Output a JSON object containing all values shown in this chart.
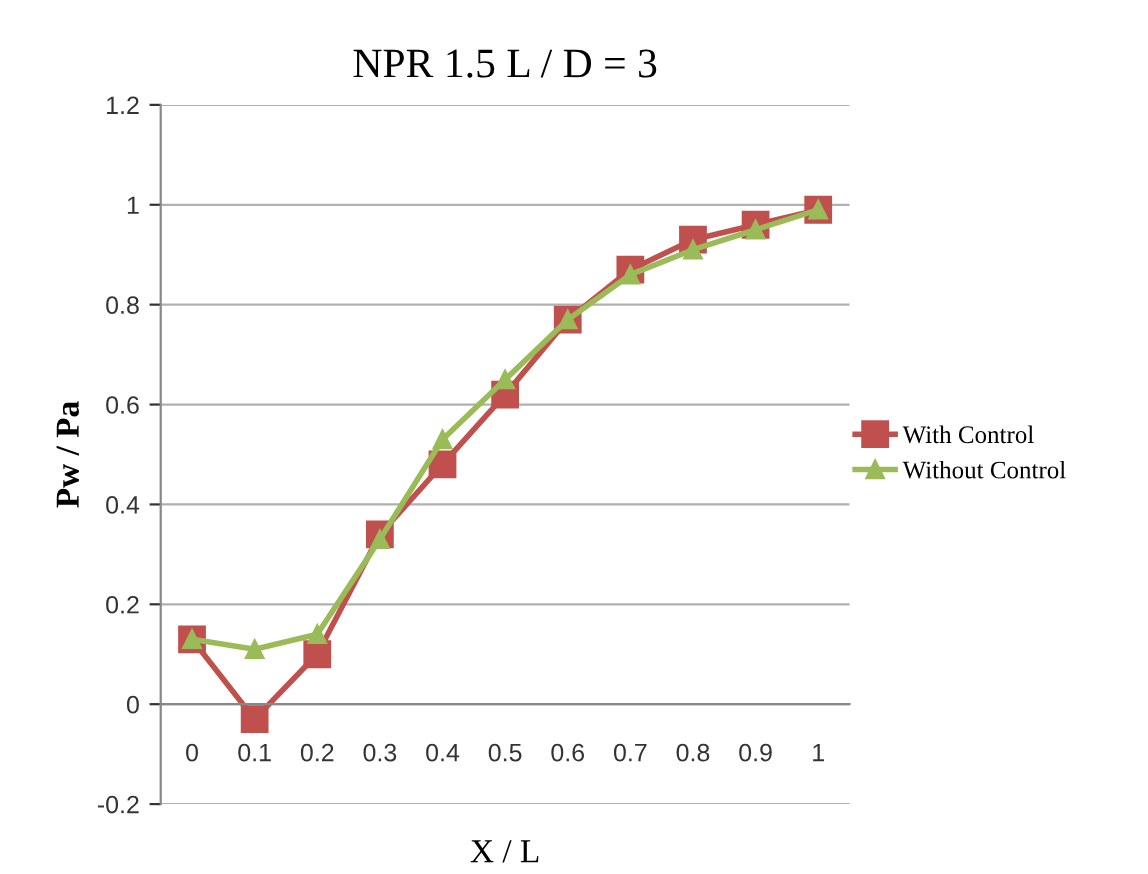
{
  "chart_data": {
    "type": "line",
    "title": "NPR 1.5 L / D = 3",
    "xlabel": "X / L",
    "ylabel": "Pw / Pa",
    "categories": [
      "0",
      "0.1",
      "0.2",
      "0.3",
      "0.4",
      "0.5",
      "0.6",
      "0.7",
      "0.8",
      "0.9",
      "1"
    ],
    "series": [
      {
        "name": "With Control",
        "color": "#c0504d",
        "marker": "square",
        "values": [
          0.13,
          -0.03,
          0.1,
          0.34,
          0.48,
          0.62,
          0.77,
          0.87,
          0.93,
          0.96,
          0.99
        ]
      },
      {
        "name": "Without Control",
        "color": "#9bbb59",
        "marker": "triangle",
        "values": [
          0.13,
          0.11,
          0.14,
          0.33,
          0.53,
          0.65,
          0.77,
          0.86,
          0.91,
          0.95,
          0.99
        ]
      }
    ],
    "ylim": [
      -0.2,
      1.2
    ],
    "yticks": [
      -0.2,
      0,
      0.2,
      0.4,
      0.6,
      0.8,
      1,
      1.2
    ],
    "grid": "y",
    "legend": "right"
  }
}
